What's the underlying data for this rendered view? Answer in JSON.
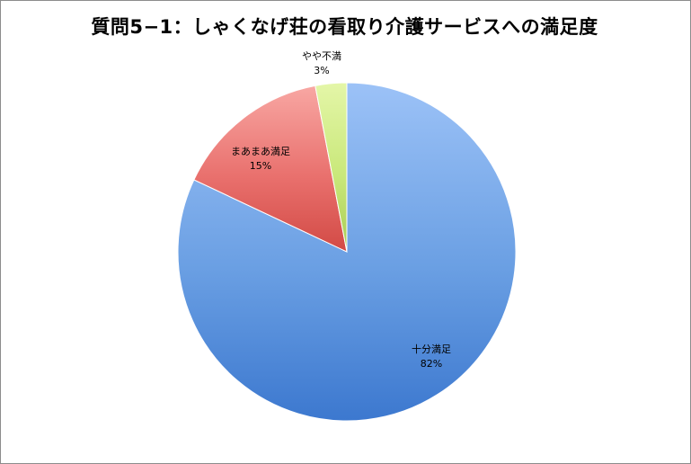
{
  "chart_data": {
    "type": "pie",
    "title": "質問5−1：しゃくなげ荘の看取り介護サービスへの満足度",
    "slices": [
      {
        "label": "十分満足",
        "value": 82,
        "value_label": "82%",
        "color": "#6a9fe3",
        "color_light": "#9cc2f7",
        "color_dark": "#3c78cf"
      },
      {
        "label": "まあまあ満足",
        "value": 15,
        "value_label": "15%",
        "color": "#e9706d",
        "color_light": "#f8a7a3",
        "color_dark": "#d24a45"
      },
      {
        "label": "やや不満",
        "value": 3,
        "value_label": "3%",
        "color": "#c9e87a",
        "color_light": "#e4f6a8",
        "color_dark": "#a9cc55"
      }
    ],
    "legend": "none"
  }
}
